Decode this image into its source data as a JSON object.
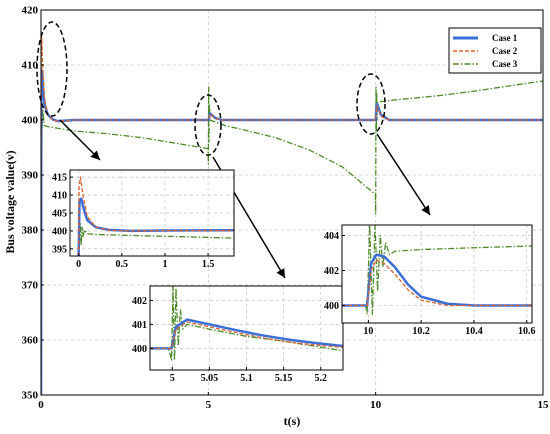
{
  "chart_data": [
    {
      "id": "main",
      "type": "line",
      "xlabel": "t(s)",
      "ylabel": "Bus voltage value(v)",
      "xlim": [
        0,
        15
      ],
      "ylim": [
        350,
        420
      ],
      "xticks": [
        0,
        5,
        10,
        15
      ],
      "yticks": [
        350,
        360,
        370,
        380,
        390,
        400,
        410,
        420
      ],
      "grid": true,
      "legend": "top-right",
      "series": [
        {
          "name": "Case 1",
          "color": "#3a6fd8",
          "style": "solid",
          "x": [
            0,
            0.01,
            0.03,
            0.06,
            0.1,
            0.2,
            0.35,
            0.5,
            1,
            5,
            5.01,
            5.05,
            5.2,
            5.4,
            10,
            10.03,
            10.06,
            10.15,
            10.4,
            15
          ],
          "y": [
            350,
            408,
            409,
            406,
            403,
            401,
            400.1,
            399.8,
            400,
            400,
            400,
            401.2,
            400.4,
            400,
            400,
            402.9,
            402.7,
            401,
            400,
            400
          ]
        },
        {
          "name": "Case 2",
          "color": "#d9622b",
          "style": "dashed",
          "x": [
            0,
            0.005,
            0.02,
            0.05,
            0.1,
            0.2,
            0.35,
            0.5,
            1,
            5,
            5.01,
            5.05,
            5.2,
            5.4,
            10,
            10.03,
            10.06,
            10.15,
            10.4,
            15
          ],
          "y": [
            350,
            412,
            415,
            410,
            404,
            401,
            400,
            399.8,
            400,
            400,
            400,
            401.1,
            400.3,
            400,
            400,
            402.6,
            402.4,
            400.7,
            400,
            400
          ]
        },
        {
          "name": "Case 3",
          "color": "#4d8b2a",
          "style": "dashdot",
          "x": [
            0,
            0.005,
            0.01,
            0.03,
            0.05,
            0.1,
            0.2,
            0.5,
            1,
            2,
            3,
            4,
            4.99,
            5,
            5.01,
            5.02,
            5.03,
            5.05,
            5.5,
            6,
            7,
            8,
            9,
            9.99,
            10,
            10.01,
            10.02,
            10.03,
            10.04,
            10.06,
            10.1,
            10.5,
            11,
            12,
            13,
            14,
            15
          ],
          "y": [
            350,
            392,
            404,
            398,
            402,
            399,
            398.8,
            398.5,
            398,
            397.5,
            396.8,
            395.8,
            394.8,
            392,
            406,
            396,
            403,
            400,
            399,
            398.3,
            396.8,
            394.6,
            391.5,
            386.5,
            383,
            406,
            398,
            405,
            400,
            403.2,
            403.3,
            403.6,
            403.9,
            404.5,
            405.3,
            406.2,
            407.1
          ]
        }
      ]
    },
    {
      "id": "inset-1",
      "type": "line",
      "xlim": [
        -0.1,
        1.8
      ],
      "ylim": [
        393,
        417
      ],
      "xticks": [
        0,
        0.5,
        1,
        1.5
      ],
      "yticks": [
        395,
        400,
        405,
        410,
        415
      ],
      "grid": true,
      "series": [
        {
          "name": "Case 1",
          "x": [
            0,
            0.01,
            0.03,
            0.06,
            0.1,
            0.2,
            0.35,
            0.6,
            1,
            1.8
          ],
          "y": [
            393,
            408,
            409,
            406,
            403,
            401,
            400.3,
            400,
            400.1,
            400.2
          ]
        },
        {
          "name": "Case 2",
          "x": [
            0,
            0.005,
            0.02,
            0.05,
            0.1,
            0.2,
            0.35,
            0.6,
            1,
            1.8
          ],
          "y": [
            393,
            412,
            415,
            410,
            404,
            401,
            400.2,
            400,
            400.1,
            400.1
          ]
        },
        {
          "name": "Case 3",
          "x": [
            0,
            0.005,
            0.01,
            0.02,
            0.03,
            0.04,
            0.05,
            0.07,
            0.1,
            0.2,
            0.5,
            1,
            1.8
          ],
          "y": [
            393,
            405,
            397,
            402,
            396,
            401,
            398.5,
            400.3,
            399.2,
            399,
            398.8,
            398.5,
            398
          ]
        }
      ]
    },
    {
      "id": "inset-2",
      "type": "line",
      "xlim": [
        4.97,
        5.23
      ],
      "ylim": [
        399.1,
        402.6
      ],
      "xticks": [
        5,
        5.05,
        5.1,
        5.15,
        5.2
      ],
      "yticks": [
        400,
        401,
        402
      ],
      "grid": true,
      "series": [
        {
          "name": "Case 1",
          "x": [
            4.97,
            4.999,
            5.005,
            5.02,
            5.05,
            5.08,
            5.12,
            5.16,
            5.2,
            5.23
          ],
          "y": [
            400,
            400,
            400.9,
            401.2,
            401,
            400.8,
            400.55,
            400.35,
            400.2,
            400.1
          ]
        },
        {
          "name": "Case 2",
          "x": [
            4.97,
            4.999,
            5.005,
            5.02,
            5.05,
            5.08,
            5.12,
            5.16,
            5.2,
            5.23
          ],
          "y": [
            400,
            400,
            400.8,
            401.1,
            400.9,
            400.7,
            400.45,
            400.25,
            400.12,
            400.05
          ]
        },
        {
          "name": "Case 3",
          "x": [
            4.97,
            4.995,
            4.999,
            5.001,
            5.003,
            5.005,
            5.008,
            5.011,
            5.014,
            5.02,
            5.05,
            5.1,
            5.15,
            5.2,
            5.23
          ],
          "y": [
            400,
            400,
            399.5,
            402.6,
            399.5,
            402.5,
            400.1,
            401.6,
            400.8,
            401,
            400.8,
            400.5,
            400.3,
            400.05,
            399.9
          ]
        }
      ]
    },
    {
      "id": "inset-3",
      "type": "line",
      "xlim": [
        9.9,
        10.62
      ],
      "ylim": [
        399,
        404.6
      ],
      "xticks": [
        10,
        10.2,
        10.4,
        10.6
      ],
      "yticks": [
        400,
        402,
        404
      ],
      "grid": true,
      "series": [
        {
          "name": "Case 1",
          "x": [
            9.9,
            9.995,
            10.01,
            10.03,
            10.06,
            10.1,
            10.15,
            10.2,
            10.3,
            10.4,
            10.62
          ],
          "y": [
            400,
            400,
            402.4,
            402.9,
            402.8,
            402.2,
            401.2,
            400.5,
            400.1,
            400,
            400
          ]
        },
        {
          "name": "Case 2",
          "x": [
            9.9,
            9.995,
            10.01,
            10.03,
            10.06,
            10.1,
            10.15,
            10.2,
            10.3,
            10.4,
            10.62
          ],
          "y": [
            400,
            400,
            402,
            402.6,
            402.4,
            401.8,
            400.9,
            400.3,
            400,
            400,
            400
          ]
        },
        {
          "name": "Case 3",
          "x": [
            9.9,
            9.99,
            9.995,
            10.005,
            10.015,
            10.025,
            10.035,
            10.045,
            10.055,
            10.065,
            10.08,
            10.1,
            10.2,
            10.4,
            10.62
          ],
          "y": [
            400,
            400,
            399.5,
            404.6,
            399.5,
            404.6,
            400.8,
            404,
            402.2,
            403.6,
            402.9,
            403.1,
            403.2,
            403.3,
            403.4
          ]
        }
      ]
    }
  ]
}
